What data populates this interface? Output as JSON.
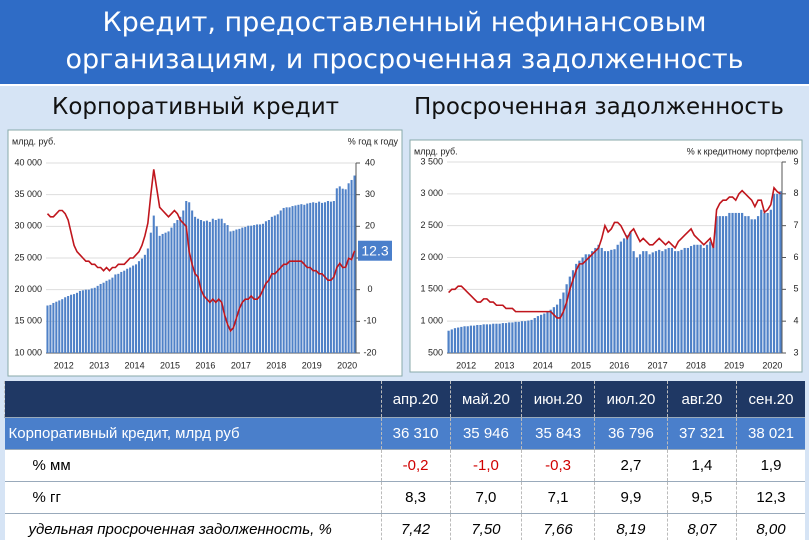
{
  "header": {
    "title": "Кредит, предоставленный нефинансовым организациям, и просроченная задолженность"
  },
  "chart_data": [
    {
      "type": "combo",
      "title": "Корпоративный кредит",
      "y_label": "млрд. руб.",
      "y2_label": "% год к году",
      "grid": true,
      "last_value_label": true,
      "categories": [
        "2012",
        null,
        null,
        null,
        null,
        null,
        null,
        null,
        null,
        null,
        null,
        null,
        "2013",
        null,
        null,
        null,
        null,
        null,
        null,
        null,
        null,
        null,
        null,
        null,
        "2014",
        null,
        null,
        null,
        null,
        null,
        null,
        null,
        null,
        null,
        null,
        null,
        "2015",
        null,
        null,
        null,
        null,
        null,
        null,
        null,
        null,
        null,
        null,
        null,
        "2016",
        null,
        null,
        null,
        null,
        null,
        null,
        null,
        null,
        null,
        null,
        null,
        "2017",
        null,
        null,
        null,
        null,
        null,
        null,
        null,
        null,
        null,
        null,
        null,
        "2018",
        null,
        null,
        null,
        null,
        null,
        null,
        null,
        null,
        null,
        null,
        null,
        "2019",
        null,
        null,
        null,
        null,
        null,
        null,
        null,
        null,
        null,
        null,
        null,
        "2020",
        null,
        null,
        null,
        null,
        null,
        null,
        null,
        null
      ],
      "ylim": [
        10000,
        40000
      ],
      "yticks": [
        {
          "value": 10000,
          "label": "10 000"
        },
        {
          "value": 15000,
          "label": "15 000"
        },
        {
          "value": 20000,
          "label": "20 000"
        },
        {
          "value": 25000,
          "label": "25 000"
        },
        {
          "value": 30000,
          "label": "30 000"
        },
        {
          "value": 35000,
          "label": "35 000"
        },
        {
          "value": 40000,
          "label": "40 000"
        }
      ],
      "y2lim": [
        -20,
        40
      ],
      "y2ticks": [
        -20,
        -10,
        0,
        10,
        20,
        30,
        40
      ],
      "series": [
        {
          "color": "#4f81c7",
          "kind": "bar",
          "axis": "y",
          "values": [
            17500,
            17600,
            17900,
            18100,
            18300,
            18500,
            18800,
            19000,
            19200,
            19300,
            19500,
            19800,
            19900,
            20000,
            20000,
            20200,
            20300,
            20600,
            20900,
            21100,
            21400,
            21600,
            21900,
            22400,
            22500,
            22800,
            23000,
            23300,
            23500,
            23800,
            24000,
            24500,
            24900,
            25500,
            26500,
            29000,
            31700,
            30000,
            28500,
            28800,
            29000,
            29200,
            29800,
            30500,
            31000,
            31500,
            32500,
            34000,
            33800,
            32500,
            31500,
            31200,
            31000,
            30800,
            30900,
            30700,
            31200,
            31000,
            31200,
            31200,
            30500,
            30200,
            29200,
            29300,
            29500,
            29600,
            29800,
            29900,
            30100,
            30100,
            30200,
            30300,
            30300,
            30400,
            30800,
            31000,
            31500,
            31700,
            31900,
            32500,
            32900,
            33000,
            33000,
            33200,
            33300,
            33400,
            33500,
            33400,
            33600,
            33700,
            33800,
            33700,
            33900,
            33700,
            33800,
            34000,
            33900,
            34000,
            36000,
            36310,
            35946,
            35843,
            36796,
            37321,
            38021
          ]
        },
        {
          "color": "#c0161d",
          "kind": "line",
          "axis": "y2",
          "values": [
            24,
            23,
            23,
            24,
            25,
            25,
            24,
            22,
            18,
            14,
            12,
            11,
            10,
            9,
            9,
            8,
            8,
            7,
            7,
            6,
            7,
            6,
            7,
            7,
            8,
            8,
            8,
            9,
            10,
            10,
            11,
            12,
            14,
            17,
            21,
            30,
            38,
            32,
            26,
            25,
            24,
            23,
            24,
            25,
            24,
            22,
            21,
            20,
            12,
            8,
            5,
            4,
            0,
            -2,
            -3,
            -4,
            -3,
            -4,
            -3,
            -4,
            -8,
            -11,
            -13,
            -12,
            -9,
            -6,
            -4,
            -3,
            -3,
            -2,
            -3,
            -3,
            -2,
            0,
            2,
            3,
            5,
            5,
            6,
            7,
            8,
            8,
            9,
            9,
            9,
            9,
            9,
            8,
            7,
            7,
            6,
            6,
            5,
            5,
            4,
            3,
            3,
            4,
            7,
            8.3,
            7.0,
            7.1,
            9.9,
            9.5,
            12.3
          ]
        }
      ]
    },
    {
      "type": "combo",
      "title": "Просроченная задолженность",
      "y_label": "млрд. руб.",
      "y2_label": "% к кредитному портфелю",
      "grid": true,
      "last_value_label": false,
      "categories": [
        "2012",
        null,
        null,
        null,
        null,
        null,
        null,
        null,
        null,
        null,
        null,
        null,
        "2013",
        null,
        null,
        null,
        null,
        null,
        null,
        null,
        null,
        null,
        null,
        null,
        "2014",
        null,
        null,
        null,
        null,
        null,
        null,
        null,
        null,
        null,
        null,
        null,
        "2015",
        null,
        null,
        null,
        null,
        null,
        null,
        null,
        null,
        null,
        null,
        null,
        "2016",
        null,
        null,
        null,
        null,
        null,
        null,
        null,
        null,
        null,
        null,
        null,
        "2017",
        null,
        null,
        null,
        null,
        null,
        null,
        null,
        null,
        null,
        null,
        null,
        "2018",
        null,
        null,
        null,
        null,
        null,
        null,
        null,
        null,
        null,
        null,
        null,
        "2019",
        null,
        null,
        null,
        null,
        null,
        null,
        null,
        null,
        null,
        null,
        null,
        "2020",
        null,
        null,
        null,
        null,
        null,
        null,
        null,
        null
      ],
      "ylim": [
        500,
        3500
      ],
      "yticks": [
        500,
        {
          "value": 1000,
          "label": "1 000"
        },
        {
          "value": 1500,
          "label": "1 500"
        },
        {
          "value": 2000,
          "label": "2 000"
        },
        {
          "value": 2500,
          "label": "2 500"
        },
        {
          "value": 3000,
          "label": "3 000"
        },
        {
          "value": 3500,
          "label": "3 500"
        }
      ],
      "y2lim": [
        3,
        9
      ],
      "y2ticks": [
        3,
        4,
        5,
        6,
        7,
        8,
        9
      ],
      "series": [
        {
          "color": "#4f81c7",
          "kind": "bar",
          "axis": "y",
          "values": [
            850,
            870,
            890,
            900,
            910,
            920,
            920,
            930,
            930,
            940,
            940,
            950,
            950,
            950,
            960,
            960,
            960,
            970,
            970,
            980,
            980,
            990,
            990,
            1000,
            1000,
            1010,
            1020,
            1050,
            1080,
            1100,
            1120,
            1150,
            1180,
            1220,
            1260,
            1350,
            1450,
            1580,
            1700,
            1800,
            1900,
            1950,
            2000,
            2050,
            2050,
            2100,
            2150,
            2200,
            2150,
            2100,
            2100,
            2120,
            2130,
            2200,
            2250,
            2300,
            2350,
            2400,
            2100,
            2000,
            2050,
            2100,
            2100,
            2050,
            2080,
            2100,
            2120,
            2100,
            2130,
            2150,
            2150,
            2100,
            2100,
            2120,
            2150,
            2150,
            2180,
            2200,
            2200,
            2200,
            2150,
            2200,
            2250,
            2200,
            2650,
            2650,
            2650,
            2650,
            2700,
            2700,
            2700,
            2700,
            2700,
            2650,
            2650,
            2600,
            2600,
            2650,
            2750,
            2700,
            2700,
            2750,
            3000,
            3000,
            3040
          ]
        },
        {
          "color": "#c0161d",
          "kind": "line",
          "axis": "y2",
          "values": [
            4.9,
            5.0,
            5.0,
            5.1,
            5.1,
            5.0,
            4.9,
            4.8,
            4.7,
            4.6,
            4.6,
            4.7,
            4.7,
            4.6,
            4.6,
            4.5,
            4.5,
            4.5,
            4.4,
            4.4,
            4.4,
            4.3,
            4.3,
            4.3,
            4.3,
            4.3,
            4.3,
            4.3,
            4.3,
            4.3,
            4.3,
            4.3,
            4.3,
            4.2,
            4.1,
            4.1,
            4.3,
            4.6,
            5.0,
            5.3,
            5.6,
            5.8,
            5.8,
            5.9,
            6.0,
            6.1,
            6.2,
            6.3,
            6.6,
            7.0,
            6.8,
            6.9,
            7.1,
            7.1,
            7.0,
            6.8,
            6.6,
            6.8,
            6.9,
            6.7,
            6.5,
            6.6,
            6.5,
            6.4,
            6.4,
            6.5,
            6.6,
            6.5,
            6.4,
            6.5,
            6.4,
            6.3,
            6.5,
            6.6,
            6.7,
            6.8,
            6.9,
            6.7,
            6.6,
            6.5,
            6.4,
            6.5,
            6.6,
            6.3,
            7.5,
            7.7,
            7.8,
            7.8,
            7.9,
            7.9,
            7.8,
            8.0,
            8.1,
            8.0,
            7.9,
            7.8,
            7.6,
            7.8,
            7.8,
            7.42,
            7.5,
            7.66,
            8.19,
            8.07,
            8.0
          ]
        }
      ]
    }
  ],
  "table": {
    "header": [
      "апр.20",
      "май.20",
      "июн.20",
      "июл.20",
      "авг.20",
      "сен.20"
    ],
    "rows": [
      {
        "label": "Корпоративный кредит, млрд руб",
        "cells": [
          "36 310",
          "35 946",
          "35 843",
          "36 796",
          "37 321",
          "38 021"
        ]
      },
      {
        "label": "% мм",
        "cells": [
          "-0,2",
          "-1,0",
          "-0,3",
          "2,7",
          "1,4",
          "1,9"
        ]
      },
      {
        "label": "% гг",
        "cells": [
          "8,3",
          "7,0",
          "7,1",
          "9,9",
          "9,5",
          "12,3"
        ]
      },
      {
        "label": "удельная просроченная задолженность, %",
        "cells": [
          "7,42",
          "7,50",
          "7,66",
          "8,19",
          "8,07",
          "8,00"
        ]
      }
    ]
  }
}
